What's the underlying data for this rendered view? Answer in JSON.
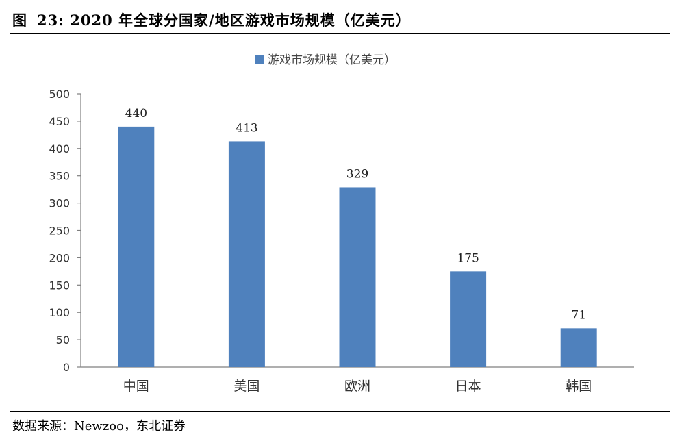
{
  "figure": {
    "label": "图",
    "number": "23:",
    "title": "2020 年全球分国家/地区游戏市场规模（亿美元）",
    "source": "数据来源：Newzoo，东北证券"
  },
  "chart_data": {
    "type": "bar",
    "categories": [
      "中国",
      "美国",
      "欧洲",
      "日本",
      "韩国"
    ],
    "series": [
      {
        "name": "游戏市场规模（亿美元）",
        "values": [
          440,
          413,
          329,
          175,
          71
        ],
        "color": "#4f81bd"
      }
    ],
    "data_labels": [
      "440",
      "413",
      "329",
      "175",
      "71"
    ],
    "ylim": [
      0,
      500
    ],
    "yticks": [
      0,
      50,
      100,
      150,
      200,
      250,
      300,
      350,
      400,
      450,
      500
    ],
    "grid": false,
    "legend_position": "top-center"
  }
}
